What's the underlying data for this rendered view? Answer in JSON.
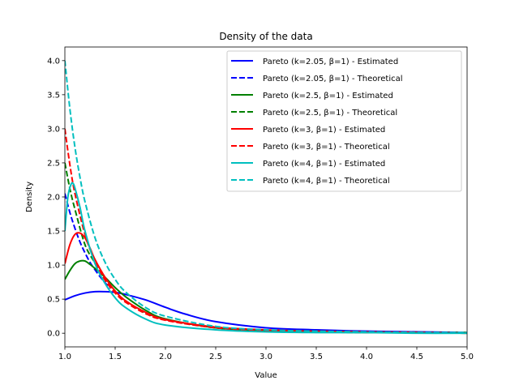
{
  "chart_data": {
    "type": "line",
    "title": "Density of the data",
    "xlabel": "Value",
    "ylabel": "Density",
    "xlim": [
      1.0,
      5.0
    ],
    "ylim": [
      -0.2,
      4.2
    ],
    "xticks": [
      1.0,
      1.5,
      2.0,
      2.5,
      3.0,
      3.5,
      4.0,
      4.5,
      5.0
    ],
    "xtick_labels": [
      "1.0",
      "1.5",
      "2.0",
      "2.5",
      "3.0",
      "3.5",
      "4.0",
      "4.5",
      "5.0"
    ],
    "yticks": [
      0.0,
      0.5,
      1.0,
      1.5,
      2.0,
      2.5,
      3.0,
      3.5,
      4.0
    ],
    "ytick_labels": [
      "0.0",
      "0.5",
      "1.0",
      "1.5",
      "2.0",
      "2.5",
      "3.0",
      "3.5",
      "4.0"
    ],
    "grid": false,
    "legend_position": "top-right",
    "series": [
      {
        "name": "Pareto (k=2.05, β=1) - Estimated",
        "color": "#0000ff",
        "style": "solid",
        "x": [
          1.0,
          1.1,
          1.2,
          1.3,
          1.4,
          1.5,
          1.6,
          1.8,
          2.0,
          2.2,
          2.5,
          3.0,
          3.5,
          4.0,
          4.5,
          5.0
        ],
        "y": [
          0.49,
          0.55,
          0.59,
          0.61,
          0.61,
          0.6,
          0.57,
          0.49,
          0.38,
          0.28,
          0.17,
          0.08,
          0.05,
          0.03,
          0.02,
          0.01
        ]
      },
      {
        "name": "Pareto (k=2.05, β=1) - Theoretical",
        "color": "#0000ff",
        "style": "dashed",
        "x": [
          1.0,
          1.05,
          1.1,
          1.15,
          1.2,
          1.25,
          1.3,
          1.35,
          1.4,
          1.45
        ],
        "y": [
          2.05,
          1.77,
          1.54,
          1.34,
          1.18,
          1.04,
          0.93,
          0.83,
          0.74,
          0.66
        ]
      },
      {
        "name": "Pareto (k=2.5, β=1) - Estimated",
        "color": "#008000",
        "style": "solid",
        "x": [
          1.0,
          1.05,
          1.1,
          1.15,
          1.2,
          1.25,
          1.3,
          1.4,
          1.5,
          1.6,
          1.8,
          2.0,
          2.5,
          3.0,
          3.5,
          4.0,
          4.5,
          5.0
        ],
        "y": [
          0.79,
          0.92,
          1.02,
          1.06,
          1.06,
          1.01,
          0.95,
          0.82,
          0.67,
          0.54,
          0.34,
          0.21,
          0.08,
          0.04,
          0.02,
          0.01,
          0.01,
          0.0
        ]
      },
      {
        "name": "Pareto (k=2.5, β=1) - Theoretical",
        "color": "#008000",
        "style": "dashed",
        "x": [
          1.0,
          1.05,
          1.1,
          1.2,
          1.3,
          1.4,
          1.5,
          1.6,
          1.8,
          2.0,
          2.5,
          3.0,
          3.5,
          4.0,
          4.5,
          5.0
        ],
        "y": [
          2.5,
          2.12,
          1.82,
          1.3,
          1.03,
          0.79,
          0.61,
          0.48,
          0.3,
          0.2,
          0.08,
          0.04,
          0.02,
          0.01,
          0.01,
          0.01
        ]
      },
      {
        "name": "Pareto (k=3, β=1) - Estimated",
        "color": "#ff0000",
        "style": "solid",
        "x": [
          1.0,
          1.05,
          1.1,
          1.15,
          1.2,
          1.25,
          1.3,
          1.4,
          1.5,
          1.6,
          1.8,
          2.0,
          2.5,
          3.0,
          3.5,
          4.0,
          4.5,
          5.0
        ],
        "y": [
          1.02,
          1.3,
          1.45,
          1.47,
          1.4,
          1.25,
          1.08,
          0.82,
          0.62,
          0.48,
          0.31,
          0.2,
          0.09,
          0.05,
          0.03,
          0.02,
          0.01,
          0.0
        ]
      },
      {
        "name": "Pareto (k=3, β=1) - Theoretical",
        "color": "#ff0000",
        "style": "dashed",
        "x": [
          1.0,
          1.05,
          1.1,
          1.2,
          1.3,
          1.4,
          1.5,
          1.6,
          1.8,
          2.0,
          2.5,
          3.0,
          3.5,
          4.0,
          4.5,
          5.0
        ],
        "y": [
          3.0,
          2.47,
          2.05,
          1.45,
          1.05,
          0.78,
          0.59,
          0.46,
          0.29,
          0.19,
          0.08,
          0.04,
          0.02,
          0.01,
          0.01,
          0.0
        ]
      },
      {
        "name": "Pareto (k=4, β=1) - Estimated",
        "color": "#00bfbf",
        "style": "solid",
        "x": [
          1.0,
          1.03,
          1.06,
          1.08,
          1.1,
          1.15,
          1.2,
          1.3,
          1.4,
          1.5,
          1.6,
          1.8,
          2.0,
          2.5,
          3.0,
          3.5,
          4.0,
          4.5,
          5.0
        ],
        "y": [
          1.5,
          2.0,
          2.18,
          2.2,
          2.13,
          1.85,
          1.5,
          1.02,
          0.73,
          0.52,
          0.38,
          0.21,
          0.12,
          0.05,
          0.02,
          0.01,
          0.01,
          0.0,
          0.0
        ]
      },
      {
        "name": "Pareto (k=4, β=1) - Theoretical",
        "color": "#00bfbf",
        "style": "dashed",
        "x": [
          1.0,
          1.05,
          1.1,
          1.15,
          1.2,
          1.3,
          1.4,
          1.5,
          1.6,
          1.8,
          2.0,
          2.5,
          3.0,
          3.5,
          4.0,
          4.5,
          5.0
        ],
        "y": [
          4.0,
          3.29,
          2.73,
          2.29,
          1.93,
          1.4,
          1.04,
          0.79,
          0.61,
          0.38,
          0.25,
          0.1,
          0.05,
          0.03,
          0.02,
          0.01,
          0.01
        ]
      }
    ]
  }
}
